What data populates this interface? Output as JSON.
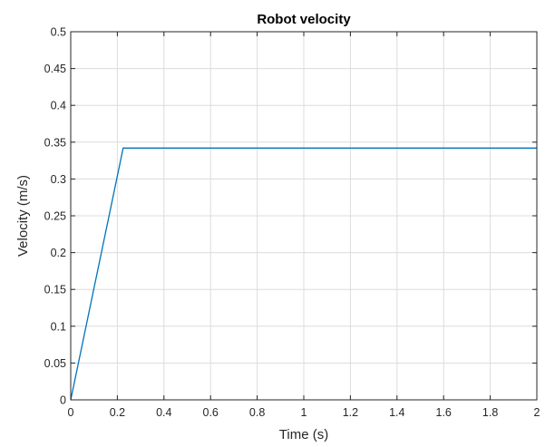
{
  "chart_data": {
    "type": "line",
    "title": "Robot velocity",
    "xlabel": "Time (s)",
    "ylabel": "Velocity (m/s)",
    "xlim": [
      0,
      2
    ],
    "ylim": [
      0,
      0.5
    ],
    "grid": true,
    "xticks": [
      0,
      0.2,
      0.4,
      0.6,
      0.8,
      1,
      1.2,
      1.4,
      1.6,
      1.8,
      2
    ],
    "xtick_labels": [
      "0",
      "0.2",
      "0.4",
      "0.6",
      "0.8",
      "1",
      "1.2",
      "1.4",
      "1.6",
      "1.8",
      "2"
    ],
    "yticks": [
      0,
      0.05,
      0.1,
      0.15,
      0.2,
      0.25,
      0.3,
      0.35,
      0.4,
      0.45,
      0.5
    ],
    "ytick_labels": [
      "0",
      "0.05",
      "0.1",
      "0.15",
      "0.2",
      "0.25",
      "0.3",
      "0.35",
      "0.4",
      "0.45",
      "0.5"
    ],
    "series": [
      {
        "color": "#0072bd",
        "x": [
          0,
          0.225,
          2
        ],
        "y": [
          0,
          0.342,
          0.342
        ]
      }
    ]
  }
}
